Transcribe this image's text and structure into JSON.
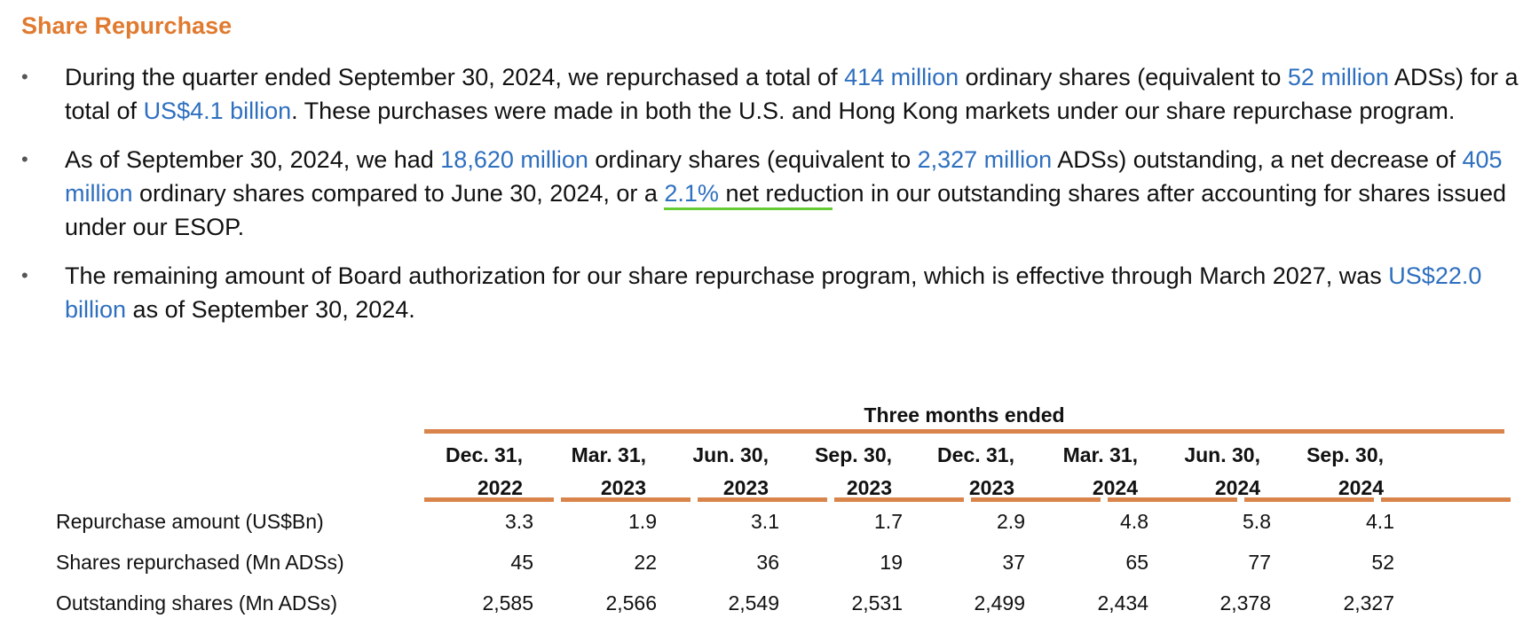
{
  "title": "Share Repurchase",
  "bullets": [
    {
      "segments": [
        {
          "text": "During the quarter ended September 30, 2024, we repurchased a total of "
        },
        {
          "text": "414 million",
          "highlight": true
        },
        {
          "text": " ordinary shares (equivalent to "
        },
        {
          "text": "52 million",
          "highlight": true
        },
        {
          "text": " ADSs) for a total of "
        },
        {
          "text": "US$4.1 billion",
          "highlight": true
        },
        {
          "text": ". These purchases were made in both the U.S. and Hong Kong markets under our share repurchase program."
        }
      ]
    },
    {
      "segments": [
        {
          "text": "As of September 30, 2024, we had "
        },
        {
          "text": "18,620 million",
          "highlight": true
        },
        {
          "text": " ordinary shares (equivalent to "
        },
        {
          "text": "2,327 million",
          "highlight": true
        },
        {
          "text": " ADSs) outstanding, a net decrease of "
        },
        {
          "text": "405 million",
          "highlight": true
        },
        {
          "text": " ordinary shares compared to June 30, 2024, or a "
        },
        {
          "text": "2.1%",
          "highlight": true,
          "underline": true
        },
        {
          "text": " net reduct",
          "underline": true
        },
        {
          "text": "ion in our outstanding shares after accounting for shares issued under our ESOP."
        }
      ]
    },
    {
      "segments": [
        {
          "text": "The remaining amount of Board authorization for our share repurchase program, which is effective through March 2027, was "
        },
        {
          "text": "US$22.0 billion",
          "highlight": true
        },
        {
          "text": " as of September 30, 2024."
        }
      ]
    }
  ],
  "table": {
    "group_header": "Three months ended",
    "columns": [
      {
        "line1": "Dec. 31,",
        "line2": "2022"
      },
      {
        "line1": "Mar. 31,",
        "line2": "2023"
      },
      {
        "line1": "Jun. 30,",
        "line2": "2023"
      },
      {
        "line1": "Sep. 30,",
        "line2": "2023"
      },
      {
        "line1": "Dec. 31,",
        "line2": "2023"
      },
      {
        "line1": "Mar. 31,",
        "line2": "2024"
      },
      {
        "line1": "Jun. 30,",
        "line2": "2024"
      },
      {
        "line1": "Sep. 30,",
        "line2": "2024"
      }
    ],
    "rows": [
      {
        "label": "Repurchase amount (US$Bn)",
        "values": [
          "3.3",
          "1.9",
          "3.1",
          "1.7",
          "2.9",
          "4.8",
          "5.8",
          "4.1"
        ]
      },
      {
        "label": "Shares repurchased (Mn ADSs)",
        "values": [
          "45",
          "22",
          "36",
          "19",
          "37",
          "65",
          "77",
          "52"
        ]
      },
      {
        "label": "Outstanding shares (Mn ADSs)",
        "values": [
          "2,585",
          "2,566",
          "2,549",
          "2,531",
          "2,499",
          "2,434",
          "2,378",
          "2,327"
        ]
      }
    ]
  },
  "colors": {
    "title": "#E07A2F",
    "highlight": "#2E6FBF",
    "rule": "#D9844B",
    "underline": "#66CC33"
  }
}
